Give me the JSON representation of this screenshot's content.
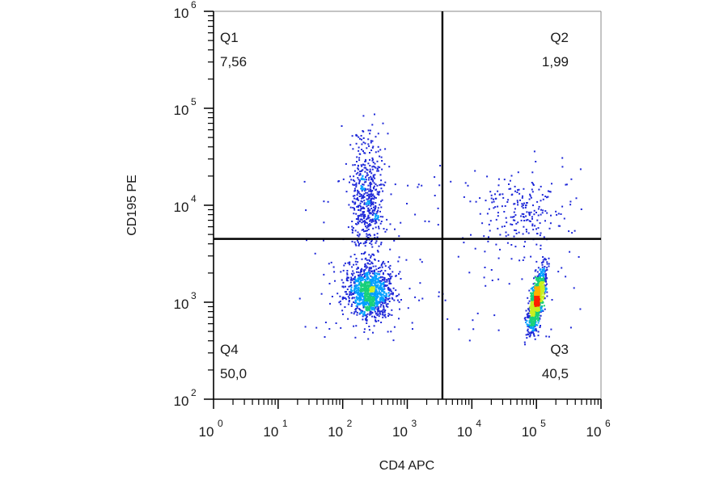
{
  "chart_data": {
    "type": "scatter",
    "plot_style": "flow-cytometry density dot plot with quadrant gates",
    "xlabel": "CD4 APC",
    "ylabel": "CD195 PE",
    "xscale": "log",
    "yscale": "log",
    "xlim": [
      1,
      1000000
    ],
    "ylim": [
      100,
      1000000
    ],
    "x_ticks": [
      {
        "base": "10",
        "exp": "0"
      },
      {
        "base": "10",
        "exp": "1"
      },
      {
        "base": "10",
        "exp": "2"
      },
      {
        "base": "10",
        "exp": "3"
      },
      {
        "base": "10",
        "exp": "4"
      },
      {
        "base": "10",
        "exp": "5"
      },
      {
        "base": "10",
        "exp": "6"
      }
    ],
    "y_ticks": [
      {
        "base": "10",
        "exp": "2"
      },
      {
        "base": "10",
        "exp": "3"
      },
      {
        "base": "10",
        "exp": "4"
      },
      {
        "base": "10",
        "exp": "5"
      },
      {
        "base": "10",
        "exp": "6"
      }
    ],
    "gates": {
      "x": 3500,
      "y": 4500
    },
    "quadrants": [
      {
        "name": "Q1",
        "value": "7,56",
        "position": "top-left"
      },
      {
        "name": "Q2",
        "value": "1,99",
        "position": "top-right"
      },
      {
        "name": "Q3",
        "value": "40,5",
        "position": "bottom-right"
      },
      {
        "name": "Q4",
        "value": "50,0",
        "position": "bottom-left"
      }
    ],
    "populations": [
      {
        "id": "cd4-neg-cd195-low",
        "center_x": 250,
        "center_y": 1300,
        "spread_log_x": 0.17,
        "spread_log_y": 0.14,
        "tilt": 0.0,
        "density": "high"
      },
      {
        "id": "cd4-neg-cd195-high",
        "center_x": 230,
        "center_y": 12000,
        "spread_log_x": 0.13,
        "spread_log_y": 0.32,
        "tilt": 0.0,
        "density": "medium"
      },
      {
        "id": "cd4-pos-cd195-low",
        "center_x": 100000,
        "center_y": 1100,
        "spread_log_x": 0.05,
        "spread_log_y": 0.15,
        "tilt": 0.25,
        "density": "high"
      },
      {
        "id": "cd4-pos-cd195-high",
        "center_x": 60000,
        "center_y": 9000,
        "spread_log_x": 0.3,
        "spread_log_y": 0.2,
        "tilt": 0.0,
        "density": "low"
      }
    ],
    "grid": false,
    "colors": {
      "density_scale": [
        "#c8d2f0",
        "#1e28d8",
        "#00a0ff",
        "#18d07a",
        "#c8f020",
        "#ffb000",
        "#ff2000"
      ],
      "gate_line": "#000000",
      "frame": "#000000"
    }
  }
}
